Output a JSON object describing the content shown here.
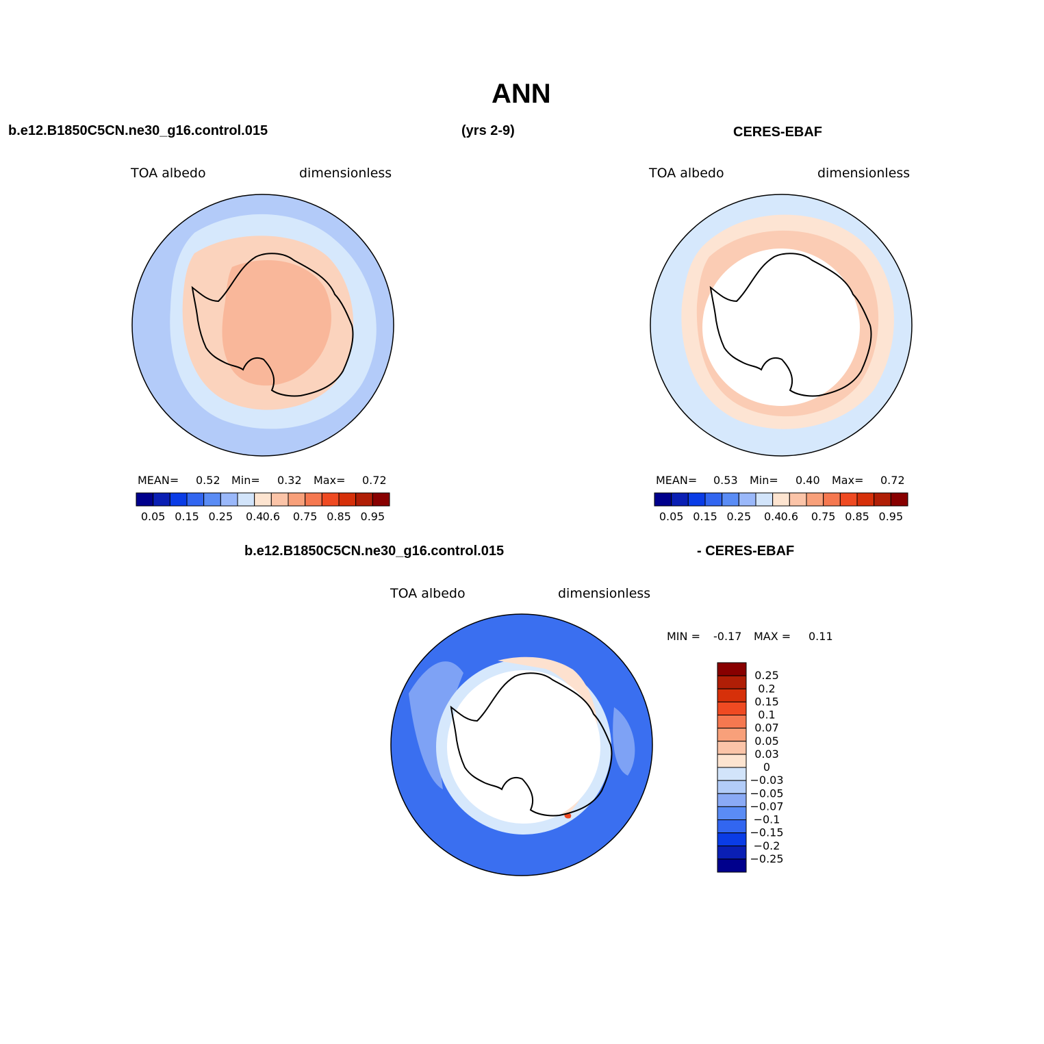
{
  "title": "ANN",
  "header": {
    "case_name": "b.e12.B1850C5CN.ne30_g16.control.015",
    "years": "(yrs 2-9)",
    "obs_name": "CERES-EBAF"
  },
  "panels": [
    {
      "variable_label": "TOA albedo",
      "units_label": "dimensionless",
      "stats": {
        "mean_label": "MEAN=",
        "mean": "0.52",
        "min_label": "Min=",
        "min": "0.32",
        "max_label": "Max=",
        "max": "0.72"
      }
    },
    {
      "variable_label": "TOA albedo",
      "units_label": "dimensionless",
      "stats": {
        "mean_label": "MEAN=",
        "mean": "0.53",
        "min_label": "Min=",
        "min": "0.40",
        "max_label": "Max=",
        "max": "0.72"
      }
    }
  ],
  "diff_panel": {
    "title_left": "b.e12.B1850C5CN.ne30_g16.control.015",
    "title_right": "- CERES-EBAF",
    "variable_label": "TOA albedo",
    "units_label": "dimensionless",
    "minmax": {
      "min_label": "MIN =",
      "min": "-0.17",
      "max_label": "MAX =",
      "max": "0.11"
    }
  },
  "colorbar_abs": {
    "colors": [
      "#00008c",
      "#0a1fb4",
      "#0a3ce6",
      "#3266f0",
      "#5a8cf5",
      "#9ab8fa",
      "#d2e4fa",
      "#fde4d0",
      "#fbc4a8",
      "#f8a07a",
      "#f57850",
      "#ef4a22",
      "#d6300a",
      "#b01e06",
      "#880000"
    ],
    "tick_labels": [
      "0.05",
      "0.15",
      "0.25",
      "0.4",
      "0.6",
      "0.75",
      "0.85",
      "0.95"
    ]
  },
  "colorbar_diff": {
    "colors_top_to_bottom": [
      "#880000",
      "#b01e06",
      "#d6300a",
      "#ef4a22",
      "#f57850",
      "#f8a07a",
      "#fbc4a8",
      "#fde4d0",
      "#d2e4fa",
      "#b2ccf8",
      "#8aaaf5",
      "#5a8cf5",
      "#3266f0",
      "#0a3ce6",
      "#0a1fb4",
      "#00008c"
    ],
    "tick_labels": [
      "0.25",
      "0.2",
      "0.15",
      "0.1",
      "0.07",
      "0.05",
      "0.03",
      "0",
      "-0.03",
      "-0.05",
      "-0.07",
      "-0.1",
      "-0.15",
      "-0.2",
      "-0.25"
    ]
  },
  "map_colors": {
    "model_outer": "#b3cbf9",
    "model_ring": "#d6e8fc",
    "model_peach": "#fbd3bd",
    "model_salmon": "#f9b79a",
    "obs_outer": "#d6e8fc",
    "obs_peach": "#fde4d3",
    "obs_salmon": "#fbccb4",
    "diff_blue": "#3a6ff0",
    "diff_light": "#7ea2f5",
    "diff_pale": "#d6e8fc",
    "diff_peach": "#fde1cf",
    "diff_red": "#ef4a22"
  }
}
